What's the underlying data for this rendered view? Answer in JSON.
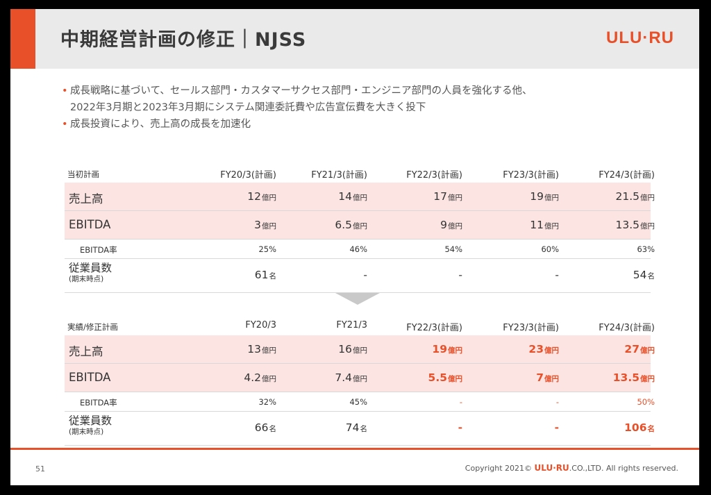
{
  "title": "中期経営計画の修正｜NJSS",
  "logo": "ULU·RU",
  "bullets": {
    "line1": "成長戦略に基づいて、セールス部門・カスタマーサクセス部門・エンジニア部門の人員を強化する他、",
    "line1b": "2022年3月期と2023年3月期にシステム関連委託費や広告宣伝費を大きく投下",
    "line2": "成長投資により、売上高の成長を加速化"
  },
  "plan_table": {
    "label": "当初計画",
    "columns": [
      "FY20/3(計画)",
      "FY21/3(計画)",
      "FY22/3(計画)",
      "FY23/3(計画)",
      "FY24/3(計画)"
    ],
    "rows": {
      "sales": {
        "name": "売上高",
        "values": [
          "12",
          "14",
          "17",
          "19",
          "21.5"
        ],
        "unit": "億円"
      },
      "ebitda": {
        "name": "EBITDA",
        "values": [
          "3",
          "6.5",
          "9",
          "11",
          "13.5"
        ],
        "unit": "億円"
      },
      "ebitda_rate": {
        "name": "EBITDA率",
        "values": [
          "25%",
          "46%",
          "54%",
          "60%",
          "63%"
        ]
      },
      "employees": {
        "name": "従業員数",
        "sub": "(期末時点)",
        "values": [
          "61",
          "-",
          "-",
          "-",
          "54"
        ],
        "unit": "名"
      }
    }
  },
  "revised_table": {
    "label": "実績/修正計画",
    "columns": [
      "FY20/3",
      "FY21/3",
      "FY22/3(計画)",
      "FY23/3(計画)",
      "FY24/3(計画)"
    ],
    "rows": {
      "sales": {
        "name": "売上高",
        "values": [
          "13",
          "16",
          "19",
          "23",
          "27"
        ],
        "unit": "億円"
      },
      "ebitda": {
        "name": "EBITDA",
        "values": [
          "4.2",
          "7.4",
          "5.5",
          "7",
          "13.5"
        ],
        "unit": "億円"
      },
      "ebitda_rate": {
        "name": "EBITDA率",
        "values": [
          "32%",
          "45%",
          "-",
          "-",
          "50%"
        ]
      },
      "employees": {
        "name": "従業員数",
        "sub": "(期末時点)",
        "values": [
          "66",
          "74",
          "-",
          "-",
          "106"
        ],
        "unit": "名"
      }
    }
  },
  "colors": {
    "accent": "#e8502a",
    "highlight_row": "#fbe4e2"
  },
  "footer": {
    "page": "51",
    "copyright_pre": "Copyright 2021©",
    "copyright_brand": "ULU·RU",
    "copyright_post": ".CO.,LTD. All rights reserved."
  }
}
